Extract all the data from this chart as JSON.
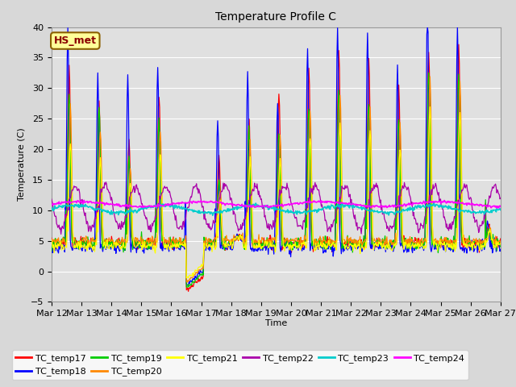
{
  "title": "Temperature Profile C",
  "xlabel": "Time",
  "ylabel": "Temperature (C)",
  "ylim": [
    -5,
    40
  ],
  "annotation": "HS_met",
  "series_colors": {
    "TC_temp17": "#ff0000",
    "TC_temp18": "#0000ff",
    "TC_temp19": "#00cc00",
    "TC_temp20": "#ff8800",
    "TC_temp21": "#ffff00",
    "TC_temp22": "#aa00aa",
    "TC_temp23": "#00cccc",
    "TC_temp24": "#ff00ff"
  },
  "x_tick_labels": [
    "Mar 12",
    "Mar 13",
    "Mar 14",
    "Mar 15",
    "Mar 16",
    "Mar 17",
    "Mar 18",
    "Mar 19",
    "Mar 20",
    "Mar 21",
    "Mar 22",
    "Mar 23",
    "Mar 24",
    "Mar 25",
    "Mar 26",
    "Mar 27"
  ],
  "fig_bg_color": "#d8d8d8",
  "plot_bg_color": "#e0e0e0",
  "grid_color": "#ffffff"
}
